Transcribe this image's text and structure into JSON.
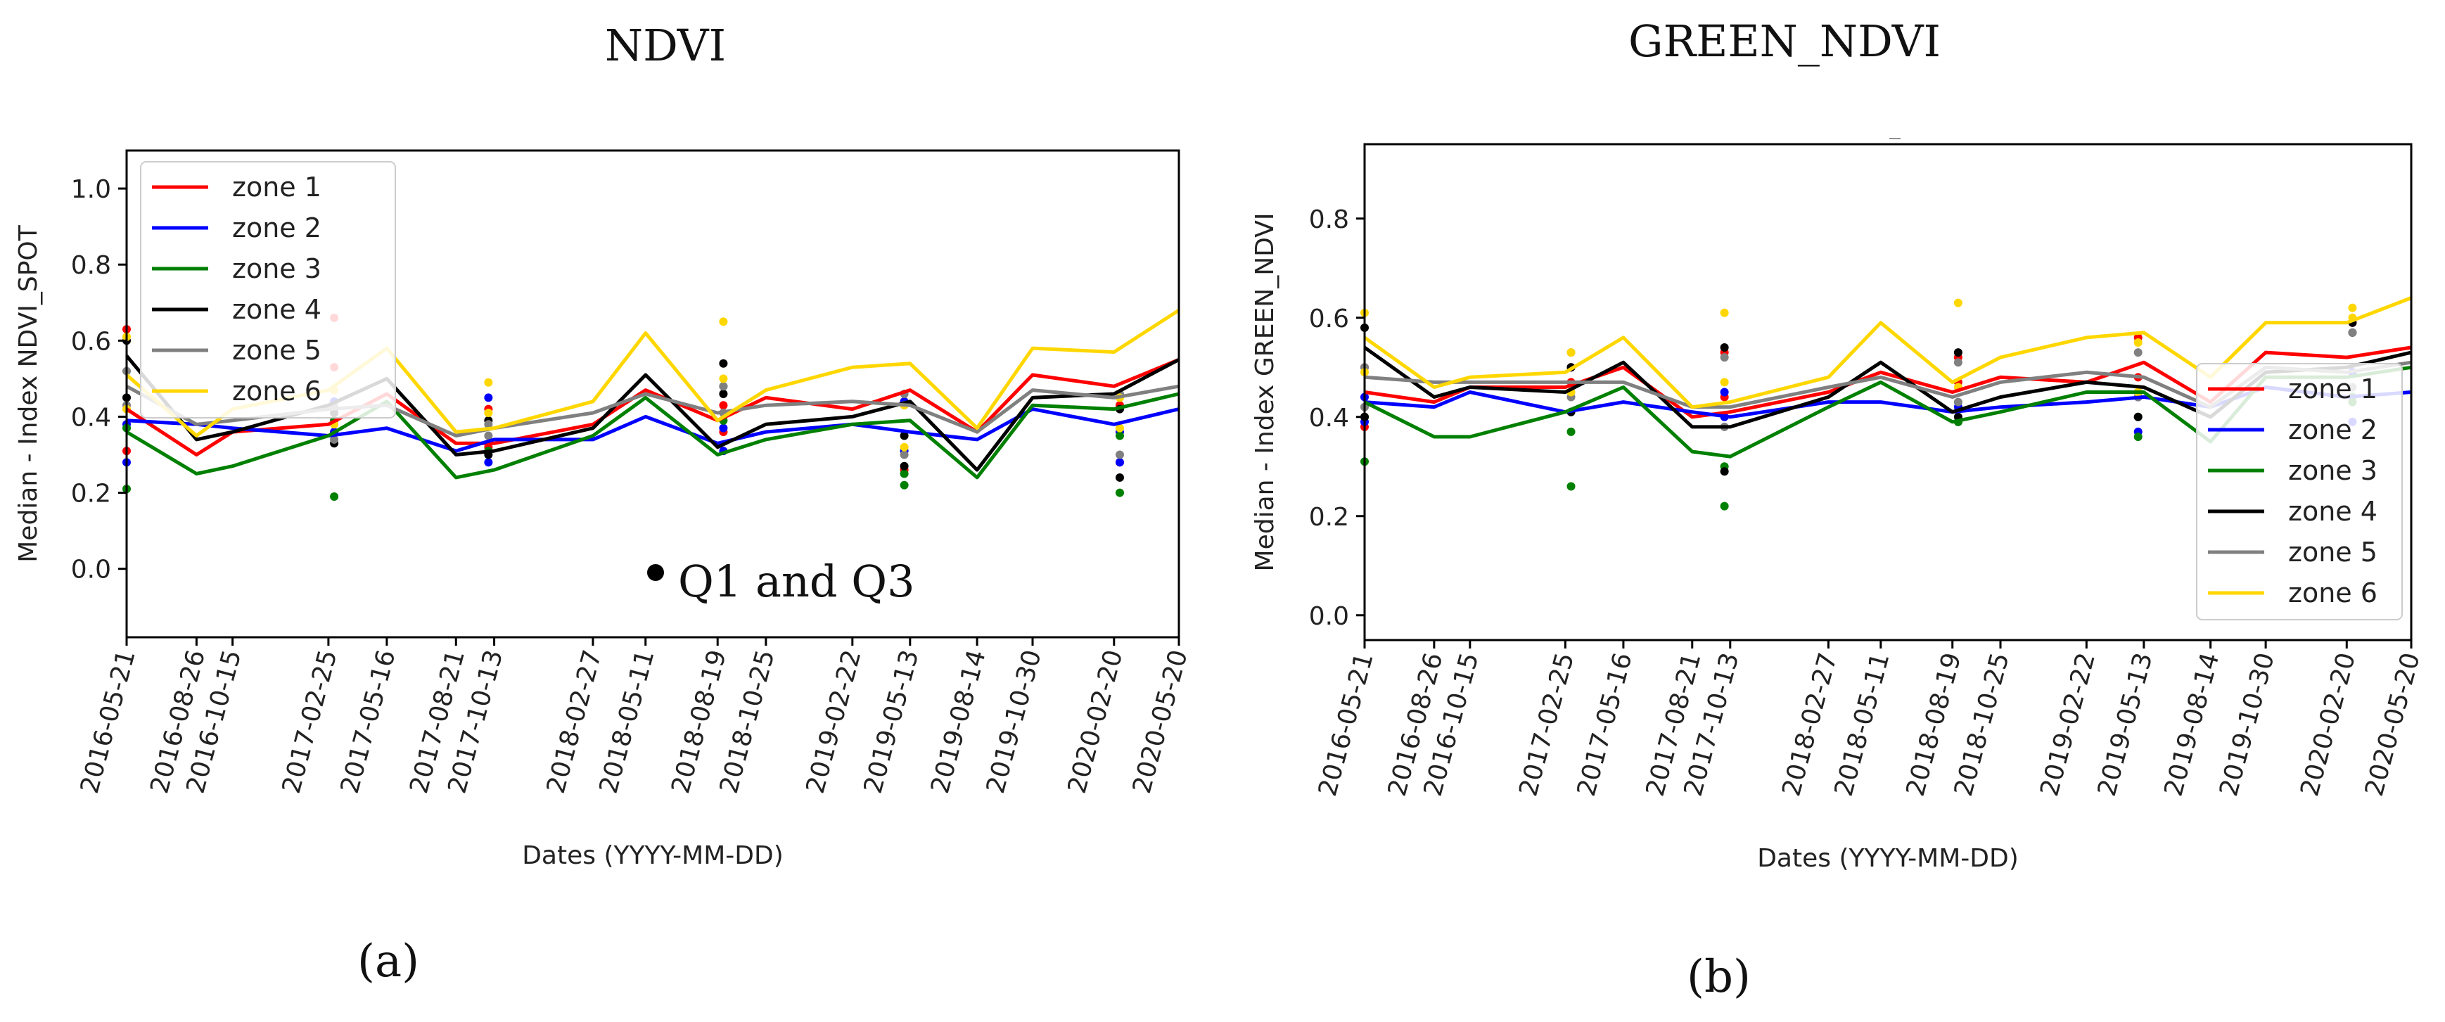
{
  "panels": [
    {
      "title": "NDVI",
      "label": "(a)",
      "annotation": "Q1 and Q3",
      "subtitle": ""
    },
    {
      "title": "GREEN_NDVI",
      "label": "(b)",
      "annotation": "",
      "subtitle": "_"
    }
  ],
  "colors": {
    "zone 1": "#ff0000",
    "zone 2": "#0000ff",
    "zone 3": "#008000",
    "zone 4": "#000000",
    "zone 5": "#808080",
    "zone 6": "#ffd700"
  },
  "chart_data": [
    {
      "type": "line",
      "title": "NDVI",
      "xlabel": "Dates (YYYY-MM-DD)",
      "ylabel": "Median - Index NDVI_SPOT",
      "ylim": [
        -0.18,
        1.1
      ],
      "yticks": [
        "0.0",
        "0.2",
        "0.4",
        "0.6",
        "0.8",
        "1.0"
      ],
      "legend": "top-left",
      "categories": [
        "2016-05-21",
        "2016-08-26",
        "2016-10-15",
        "2017-02-25",
        "2017-05-16",
        "2017-08-21",
        "2017-10-13",
        "2018-02-27",
        "2018-05-11",
        "2018-08-19",
        "2018-10-25",
        "2019-02-22",
        "2019-05-13",
        "2019-08-14",
        "2019-10-30",
        "2020-02-20",
        "2020-05-20"
      ],
      "x_days": [
        0,
        97,
        147,
        280,
        361,
        457,
        510,
        647,
        720,
        820,
        887,
        1007,
        1087,
        1180,
        1257,
        1370,
        1460
      ],
      "series": [
        {
          "name": "zone 1",
          "values": [
            0.42,
            0.3,
            0.36,
            0.38,
            0.46,
            0.33,
            0.33,
            0.38,
            0.47,
            0.39,
            0.45,
            0.42,
            0.47,
            0.36,
            0.51,
            0.48,
            0.55
          ]
        },
        {
          "name": "zone 2",
          "values": [
            0.39,
            0.38,
            0.37,
            0.35,
            0.37,
            0.31,
            0.34,
            0.34,
            0.4,
            0.33,
            0.36,
            0.38,
            0.36,
            0.34,
            0.42,
            0.38,
            0.42
          ]
        },
        {
          "name": "zone 3",
          "values": [
            0.36,
            0.25,
            0.27,
            0.35,
            0.44,
            0.24,
            0.26,
            0.35,
            0.45,
            0.3,
            0.34,
            0.38,
            0.39,
            0.24,
            0.43,
            0.42,
            0.46
          ]
        },
        {
          "name": "zone 4",
          "values": [
            0.56,
            0.34,
            0.36,
            0.43,
            0.5,
            0.3,
            0.31,
            0.37,
            0.51,
            0.32,
            0.38,
            0.4,
            0.44,
            0.26,
            0.45,
            0.46,
            0.55
          ]
        },
        {
          "name": "zone 5",
          "values": [
            0.48,
            0.38,
            0.39,
            0.42,
            0.43,
            0.35,
            0.37,
            0.41,
            0.46,
            0.41,
            0.43,
            0.44,
            0.43,
            0.36,
            0.47,
            0.45,
            0.48
          ]
        },
        {
          "name": "zone 6",
          "values": [
            0.51,
            0.35,
            0.42,
            0.47,
            0.58,
            0.36,
            0.37,
            0.44,
            0.62,
            0.39,
            0.47,
            0.53,
            0.54,
            0.37,
            0.58,
            0.57,
            0.68
          ]
        }
      ],
      "quartiles": [
        [
          0.63,
          0.31,
          0.53,
          0.66,
          0.42,
          0.32,
          0.43,
          0.36,
          0.44,
          0.26,
          0.43,
          0.28
        ],
        [
          0.38,
          0.28,
          0.44,
          0.36,
          0.45,
          0.28,
          0.37,
          0.31,
          0.44,
          0.31,
          0.36,
          0.28
        ],
        [
          0.37,
          0.21,
          0.39,
          0.19,
          0.31,
          0.31,
          0.48,
          0.39,
          0.22,
          0.25,
          0.35,
          0.2
        ],
        [
          0.6,
          0.45,
          0.41,
          0.33,
          0.39,
          0.3,
          0.54,
          0.46,
          0.35,
          0.27,
          0.42,
          0.24
        ],
        [
          0.52,
          0.43,
          0.43,
          0.34,
          0.38,
          0.35,
          0.48,
          0.41,
          0.46,
          0.3,
          0.46,
          0.3
        ],
        [
          0.61,
          0.42,
          0.47,
          0.38,
          0.49,
          0.41,
          0.65,
          0.5,
          0.43,
          0.32,
          0.45,
          0.37
        ]
      ]
    },
    {
      "type": "line",
      "title": "GREEN_NDVI",
      "xlabel": "Dates (YYYY-MM-DD)",
      "ylabel": "Median - Index GREEN_NDVI",
      "ylim": [
        -0.05,
        0.95
      ],
      "yticks": [
        "0.0",
        "0.2",
        "0.4",
        "0.6",
        "0.8"
      ],
      "legend": "center-right",
      "categories": [
        "2016-05-21",
        "2016-08-26",
        "2016-10-15",
        "2017-02-25",
        "2017-05-16",
        "2017-08-21",
        "2017-10-13",
        "2018-02-27",
        "2018-05-11",
        "2018-08-19",
        "2018-10-25",
        "2019-02-22",
        "2019-05-13",
        "2019-08-14",
        "2019-10-30",
        "2020-02-20",
        "2020-05-20"
      ],
      "x_days": [
        0,
        97,
        147,
        280,
        361,
        457,
        510,
        647,
        720,
        820,
        887,
        1007,
        1087,
        1180,
        1257,
        1370,
        1460
      ],
      "series": [
        {
          "name": "zone 1",
          "values": [
            0.45,
            0.43,
            0.46,
            0.46,
            0.5,
            0.4,
            0.41,
            0.45,
            0.49,
            0.45,
            0.48,
            0.47,
            0.51,
            0.43,
            0.53,
            0.52,
            0.54
          ]
        },
        {
          "name": "zone 2",
          "values": [
            0.43,
            0.42,
            0.45,
            0.41,
            0.43,
            0.41,
            0.4,
            0.43,
            0.43,
            0.41,
            0.42,
            0.43,
            0.44,
            0.42,
            0.46,
            0.44,
            0.45
          ]
        },
        {
          "name": "zone 3",
          "values": [
            0.43,
            0.36,
            0.36,
            0.41,
            0.46,
            0.33,
            0.32,
            0.42,
            0.47,
            0.39,
            0.41,
            0.45,
            0.45,
            0.35,
            0.48,
            0.48,
            0.5
          ]
        },
        {
          "name": "zone 4",
          "values": [
            0.54,
            0.44,
            0.46,
            0.45,
            0.51,
            0.38,
            0.38,
            0.44,
            0.51,
            0.41,
            0.44,
            0.47,
            0.46,
            0.4,
            0.49,
            0.5,
            0.53
          ]
        },
        {
          "name": "zone 5",
          "values": [
            0.48,
            0.47,
            0.47,
            0.47,
            0.47,
            0.42,
            0.42,
            0.46,
            0.48,
            0.44,
            0.47,
            0.49,
            0.48,
            0.42,
            0.5,
            0.49,
            0.51
          ]
        },
        {
          "name": "zone 6",
          "values": [
            0.56,
            0.46,
            0.48,
            0.49,
            0.56,
            0.42,
            0.43,
            0.48,
            0.59,
            0.47,
            0.52,
            0.56,
            0.57,
            0.48,
            0.59,
            0.59,
            0.64
          ]
        }
      ],
      "quartiles": [
        [
          0.5,
          0.38,
          0.5,
          0.47,
          0.53,
          0.44,
          0.47,
          0.52,
          0.48,
          0.56,
          0.59,
          0.49
        ],
        [
          0.44,
          0.39,
          0.5,
          0.41,
          0.45,
          0.4,
          0.42,
          0.39,
          0.44,
          0.37,
          0.49,
          0.39
        ],
        [
          0.4,
          0.31,
          0.26,
          0.37,
          0.3,
          0.22,
          0.39,
          0.39,
          0.36,
          0.4,
          0.44,
          0.43
        ],
        [
          0.58,
          0.4,
          0.5,
          0.41,
          0.54,
          0.29,
          0.53,
          0.4,
          0.45,
          0.4,
          0.57,
          0.59
        ],
        [
          0.5,
          0.42,
          0.53,
          0.44,
          0.52,
          0.38,
          0.51,
          0.43,
          0.53,
          0.44,
          0.57,
          0.46
        ],
        [
          0.61,
          0.49,
          0.53,
          0.45,
          0.61,
          0.47,
          0.63,
          0.46,
          0.55,
          0.45,
          0.6,
          0.62
        ]
      ]
    }
  ]
}
